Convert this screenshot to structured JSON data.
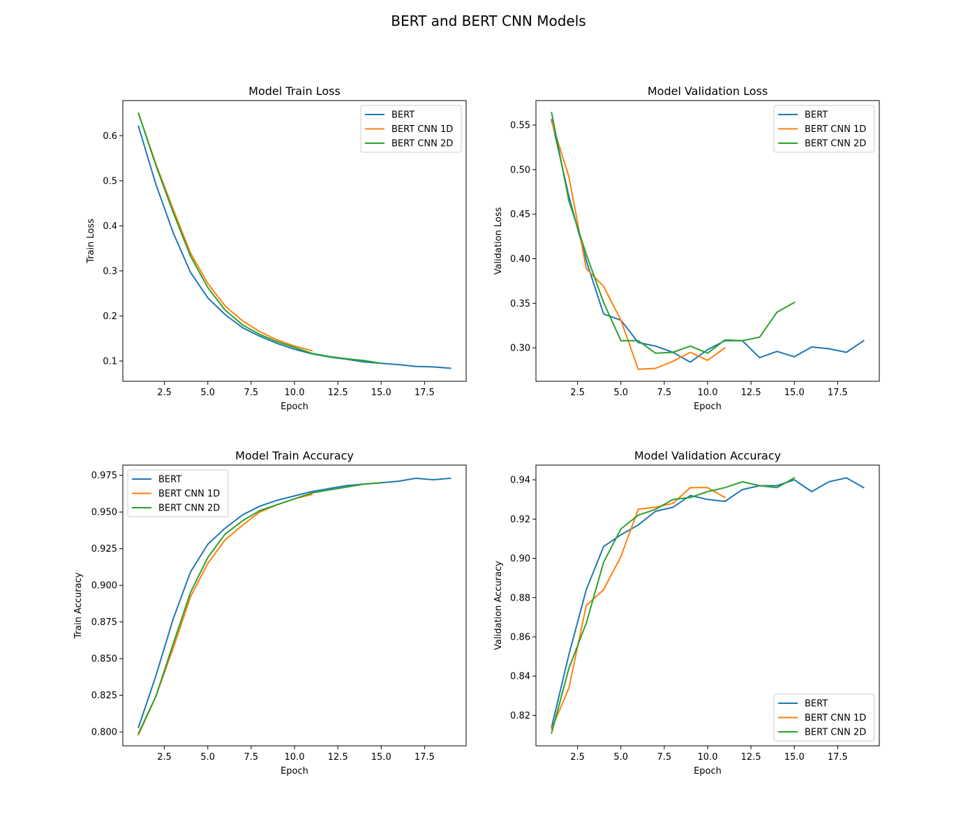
{
  "figure": {
    "title": "BERT and BERT CNN Models"
  },
  "colors": {
    "BERT": "#1f77b4",
    "BERT CNN 1D": "#ff7f0e",
    "BERT CNN 2D": "#2ca02c"
  },
  "chart_data": [
    {
      "type": "line",
      "title": "Model Train Loss",
      "xlabel": "Epoch",
      "ylabel": "Train Loss",
      "xlim": [
        0.1,
        19.9
      ],
      "ylim": [
        0.055,
        0.678
      ],
      "xticks": [
        "2.5",
        "5.0",
        "7.5",
        "10.0",
        "12.5",
        "15.0",
        "17.5"
      ],
      "yticks": [
        "0.1",
        "0.2",
        "0.3",
        "0.4",
        "0.5",
        "0.6"
      ],
      "legend": "upper right",
      "series": [
        {
          "name": "BERT",
          "x": [
            1,
            2,
            3,
            4,
            5,
            6,
            7,
            8,
            9,
            10,
            11,
            12,
            13,
            14,
            15,
            16,
            17,
            18,
            19
          ],
          "y": [
            0.621,
            0.493,
            0.385,
            0.297,
            0.24,
            0.203,
            0.174,
            0.155,
            0.139,
            0.126,
            0.116,
            0.109,
            0.104,
            0.098,
            0.095,
            0.092,
            0.088,
            0.087,
            0.084
          ]
        },
        {
          "name": "BERT CNN 1D",
          "x": [
            1,
            2,
            3,
            4,
            5,
            6,
            7,
            8,
            9,
            10,
            11
          ],
          "y": [
            0.65,
            0.538,
            0.437,
            0.34,
            0.272,
            0.222,
            0.189,
            0.165,
            0.147,
            0.133,
            0.123
          ]
        },
        {
          "name": "BERT CNN 2D",
          "x": [
            1,
            2,
            3,
            4,
            5,
            6,
            7,
            8,
            9,
            10,
            11,
            12,
            13,
            14,
            15
          ],
          "y": [
            0.65,
            0.535,
            0.43,
            0.333,
            0.263,
            0.213,
            0.18,
            0.159,
            0.143,
            0.13,
            0.117,
            0.11,
            0.105,
            0.101,
            0.095
          ]
        }
      ]
    },
    {
      "type": "line",
      "title": "Model Validation Loss",
      "xlabel": "Epoch",
      "ylabel": "Validation Loss",
      "xlim": [
        0.1,
        19.9
      ],
      "ylim": [
        0.2625,
        0.5775
      ],
      "xticks": [
        "2.5",
        "5.0",
        "7.5",
        "10.0",
        "12.5",
        "15.0",
        "17.5"
      ],
      "yticks": [
        "0.30",
        "0.35",
        "0.40",
        "0.45",
        "0.50",
        "0.55"
      ],
      "legend": "upper right",
      "series": [
        {
          "name": "BERT",
          "x": [
            1,
            2,
            3,
            4,
            5,
            6,
            7,
            8,
            9,
            10,
            11,
            12,
            13,
            14,
            15,
            16,
            17,
            18,
            19
          ],
          "y": [
            0.556,
            0.47,
            0.398,
            0.338,
            0.331,
            0.306,
            0.302,
            0.295,
            0.284,
            0.298,
            0.308,
            0.308,
            0.289,
            0.296,
            0.29,
            0.301,
            0.299,
            0.295,
            0.308
          ]
        },
        {
          "name": "BERT CNN 1D",
          "x": [
            1,
            2,
            3,
            4,
            5,
            6,
            7,
            8,
            9,
            10,
            11
          ],
          "y": [
            0.554,
            0.492,
            0.389,
            0.369,
            0.331,
            0.276,
            0.277,
            0.285,
            0.295,
            0.286,
            0.3
          ]
        },
        {
          "name": "BERT CNN 2D",
          "x": [
            1,
            2,
            3,
            4,
            5,
            6,
            7,
            8,
            9,
            10,
            11,
            12,
            13,
            14,
            15
          ],
          "y": [
            0.564,
            0.465,
            0.405,
            0.351,
            0.308,
            0.308,
            0.294,
            0.295,
            0.302,
            0.294,
            0.309,
            0.308,
            0.312,
            0.34,
            0.351
          ]
        }
      ]
    },
    {
      "type": "line",
      "title": "Model Train Accuracy",
      "xlabel": "Epoch",
      "ylabel": "Train Accuracy",
      "xlim": [
        0.1,
        19.9
      ],
      "ylim": [
        0.7905,
        0.982
      ],
      "xticks": [
        "2.5",
        "5.0",
        "7.5",
        "10.0",
        "12.5",
        "15.0",
        "17.5"
      ],
      "yticks": [
        "0.800",
        "0.825",
        "0.850",
        "0.875",
        "0.900",
        "0.925",
        "0.950",
        "0.975"
      ],
      "legend": "upper left",
      "series": [
        {
          "name": "BERT",
          "x": [
            1,
            2,
            3,
            4,
            5,
            6,
            7,
            8,
            9,
            10,
            11,
            12,
            13,
            14,
            15,
            16,
            17,
            18,
            19
          ],
          "y": [
            0.803,
            0.838,
            0.877,
            0.909,
            0.928,
            0.939,
            0.948,
            0.954,
            0.958,
            0.961,
            0.964,
            0.966,
            0.968,
            0.969,
            0.97,
            0.971,
            0.973,
            0.972,
            0.973
          ]
        },
        {
          "name": "BERT CNN 1D",
          "x": [
            1,
            2,
            3,
            4,
            5,
            6,
            7,
            8,
            9,
            10,
            11
          ],
          "y": [
            0.798,
            0.824,
            0.857,
            0.892,
            0.915,
            0.931,
            0.941,
            0.95,
            0.955,
            0.959,
            0.962
          ]
        },
        {
          "name": "BERT CNN 2D",
          "x": [
            1,
            2,
            3,
            4,
            5,
            6,
            7,
            8,
            9,
            10,
            11,
            12,
            13,
            14,
            15
          ],
          "y": [
            0.799,
            0.824,
            0.86,
            0.895,
            0.919,
            0.935,
            0.944,
            0.951,
            0.955,
            0.959,
            0.963,
            0.965,
            0.967,
            0.969,
            0.97
          ]
        }
      ]
    },
    {
      "type": "line",
      "title": "Model Validation Accuracy",
      "xlabel": "Epoch",
      "ylabel": "Validation Accuracy",
      "xlim": [
        0.1,
        19.9
      ],
      "ylim": [
        0.8045,
        0.9475
      ],
      "xticks": [
        "2.5",
        "5.0",
        "7.5",
        "10.0",
        "12.5",
        "15.0",
        "17.5"
      ],
      "yticks": [
        "0.82",
        "0.84",
        "0.86",
        "0.88",
        "0.90",
        "0.92",
        "0.94"
      ],
      "legend": "lower right",
      "series": [
        {
          "name": "BERT",
          "x": [
            1,
            2,
            3,
            4,
            5,
            6,
            7,
            8,
            9,
            10,
            11,
            12,
            13,
            14,
            15,
            16,
            17,
            18,
            19
          ],
          "y": [
            0.814,
            0.851,
            0.884,
            0.906,
            0.912,
            0.917,
            0.924,
            0.926,
            0.932,
            0.93,
            0.929,
            0.935,
            0.937,
            0.937,
            0.94,
            0.934,
            0.939,
            0.941,
            0.936
          ]
        },
        {
          "name": "BERT CNN 1D",
          "x": [
            1,
            2,
            3,
            4,
            5,
            6,
            7,
            8,
            9,
            10,
            11
          ],
          "y": [
            0.813,
            0.834,
            0.876,
            0.884,
            0.901,
            0.925,
            0.926,
            0.928,
            0.936,
            0.936,
            0.931
          ]
        },
        {
          "name": "BERT CNN 2D",
          "x": [
            1,
            2,
            3,
            4,
            5,
            6,
            7,
            8,
            9,
            10,
            11,
            12,
            13,
            14,
            15
          ],
          "y": [
            0.811,
            0.844,
            0.867,
            0.898,
            0.915,
            0.922,
            0.925,
            0.93,
            0.931,
            0.934,
            0.936,
            0.939,
            0.937,
            0.936,
            0.941
          ]
        }
      ]
    }
  ]
}
